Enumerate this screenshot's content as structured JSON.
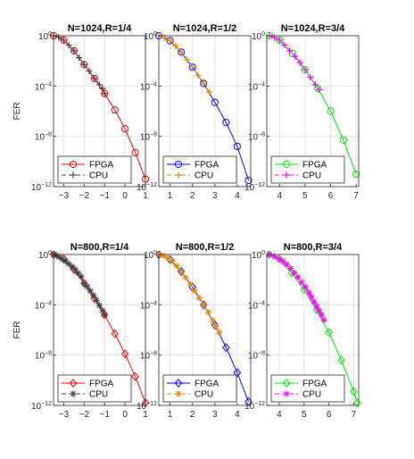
{
  "figure": {
    "ylabel": "FER"
  },
  "chart_data": [
    {
      "type": "line",
      "title": "N=1024,R=1/4",
      "xlim": [
        -3.5,
        1
      ],
      "xticks": [
        -3,
        -2,
        -1,
        0,
        1
      ],
      "ylim": [
        -12,
        0
      ],
      "yticks": [
        0,
        -4,
        -8,
        -12
      ],
      "yscale": "log",
      "grid": true,
      "legend": "bottom",
      "series": [
        {
          "name": "FPGA",
          "color": "#ff0000",
          "linestyle": "solid",
          "marker": "circle",
          "x": [
            -3.5,
            -3,
            -2.5,
            -2,
            -1.5,
            -1,
            -0.5,
            0,
            0.5,
            1
          ],
          "y": [
            0,
            -0.35,
            -1.2,
            -2.3,
            -3.4,
            -4.6,
            -5.9,
            -7.4,
            -9.3,
            -11.4
          ]
        },
        {
          "name": "CPU",
          "color": "#404040",
          "linestyle": "dashed",
          "marker": "plus",
          "x": [
            -3.5,
            -3.25,
            -3,
            -2.75,
            -2.5,
            -2.25,
            -2,
            -1.75,
            -1.5,
            -1.25,
            -1.1,
            -1
          ],
          "y": [
            0,
            -0.12,
            -0.35,
            -0.75,
            -1.2,
            -1.75,
            -2.3,
            -2.8,
            -3.4,
            -3.9,
            -4.2,
            -4.6
          ]
        }
      ]
    },
    {
      "type": "line",
      "title": "N=1024,R=1/2",
      "xlim": [
        0.5,
        4.6
      ],
      "xticks": [
        1,
        2,
        3,
        4
      ],
      "ylim": [
        -12,
        0
      ],
      "yticks": [
        0,
        -4,
        -8,
        -12
      ],
      "yscale": "log",
      "grid": true,
      "legend": "bottom",
      "series": [
        {
          "name": "FPGA",
          "color": "#0000ff",
          "linestyle": "solid",
          "marker": "circle",
          "x": [
            0.5,
            1,
            1.5,
            2,
            2.5,
            3,
            3.5,
            4,
            4.5
          ],
          "y": [
            0,
            -0.4,
            -1.3,
            -2.5,
            -3.8,
            -5.3,
            -6.9,
            -8.8,
            -11.5
          ]
        },
        {
          "name": "CPU",
          "color": "#e88a00",
          "linestyle": "dashed",
          "marker": "plus",
          "x": [
            0.5,
            0.75,
            1,
            1.25,
            1.5,
            1.75,
            2,
            2.25,
            2.5,
            2.75
          ],
          "y": [
            0,
            -0.15,
            -0.4,
            -0.8,
            -1.3,
            -1.9,
            -2.5,
            -3.15,
            -3.8,
            -4.5
          ]
        }
      ]
    },
    {
      "type": "line",
      "title": "N=1024,R=3/4",
      "xlim": [
        3.5,
        7.1
      ],
      "xticks": [
        4,
        5,
        6,
        7
      ],
      "ylim": [
        -12,
        0
      ],
      "yticks": [
        0,
        -4,
        -8,
        -12
      ],
      "yscale": "log",
      "grid": true,
      "legend": "bottom",
      "series": [
        {
          "name": "FPGA",
          "color": "#00ee00",
          "linestyle": "solid",
          "marker": "circle",
          "x": [
            3.6,
            4,
            4.5,
            5,
            5.5,
            6,
            6.5,
            7
          ],
          "y": [
            0,
            -0.35,
            -1.4,
            -2.7,
            -4.2,
            -6,
            -8.3,
            -11
          ]
        },
        {
          "name": "CPU",
          "color": "#ff00ff",
          "linestyle": "dashed",
          "marker": "plus",
          "x": [
            3.6,
            3.8,
            4,
            4.2,
            4.4,
            4.6,
            4.8,
            5,
            5.2,
            5.4,
            5.55
          ],
          "y": [
            0,
            -0.15,
            -0.35,
            -0.75,
            -1.2,
            -1.65,
            -2.15,
            -2.7,
            -3.3,
            -3.9,
            -4.3
          ]
        }
      ]
    },
    {
      "type": "line",
      "title": "N=800,R=1/4",
      "xlim": [
        -3.5,
        1
      ],
      "xticks": [
        -3,
        -2,
        -1,
        0,
        1
      ],
      "ylim": [
        -12,
        0
      ],
      "yticks": [
        0,
        -4,
        -8,
        -12
      ],
      "yscale": "log",
      "grid": true,
      "legend": "bottom",
      "series": [
        {
          "name": "FPGA",
          "color": "#ff0000",
          "linestyle": "solid",
          "marker": "diamond",
          "x": [
            -3.5,
            -3,
            -2.5,
            -2,
            -1.5,
            -1,
            -0.5,
            0,
            0.5,
            1
          ],
          "y": [
            0,
            -0.35,
            -1.2,
            -2.3,
            -3.5,
            -4.8,
            -6.3,
            -7.9,
            -9.7,
            -11.8
          ]
        },
        {
          "name": "CPU",
          "color": "#404040",
          "linestyle": "dashed",
          "marker": "asterisk",
          "x": [
            -3.5,
            -3.35,
            -3.2,
            -3.05,
            -2.9,
            -2.75,
            -2.6,
            -2.45,
            -2.3,
            -2.15,
            -2,
            -1.85,
            -1.7,
            -1.55,
            -1.4,
            -1.25,
            -1.1,
            -1
          ],
          "y": [
            0,
            -0.1,
            -0.22,
            -0.38,
            -0.55,
            -0.75,
            -0.97,
            -1.2,
            -1.48,
            -1.75,
            -2.3,
            -2.55,
            -2.9,
            -3.25,
            -3.65,
            -4.05,
            -4.45,
            -4.8
          ]
        }
      ]
    },
    {
      "type": "line",
      "title": "N=800,R=1/2",
      "xlim": [
        0.5,
        4.6
      ],
      "xticks": [
        1,
        2,
        3,
        4
      ],
      "ylim": [
        -12,
        0
      ],
      "yticks": [
        0,
        -4,
        -8,
        -12
      ],
      "yscale": "log",
      "grid": true,
      "legend": "bottom",
      "series": [
        {
          "name": "FPGA",
          "color": "#0000ff",
          "linestyle": "solid",
          "marker": "diamond",
          "x": [
            0.5,
            1,
            1.5,
            2,
            2.5,
            3,
            3.5,
            4,
            4.5
          ],
          "y": [
            0,
            -0.4,
            -1.35,
            -2.6,
            -4,
            -5.6,
            -7.4,
            -9.4,
            -11.7
          ]
        },
        {
          "name": "CPU",
          "color": "#e88a00",
          "linestyle": "dashed",
          "marker": "asterisk",
          "x": [
            0.5,
            0.7,
            0.9,
            1.1,
            1.3,
            1.5,
            1.7,
            1.9,
            2.1,
            2.3,
            2.5,
            2.7,
            2.9,
            3.05,
            3.2
          ],
          "y": [
            0,
            -0.1,
            -0.28,
            -0.55,
            -0.9,
            -1.35,
            -1.85,
            -2.35,
            -2.9,
            -3.45,
            -4,
            -4.6,
            -5.25,
            -5.75,
            -6.2
          ]
        }
      ]
    },
    {
      "type": "line",
      "title": "N=800,R=3/4",
      "xlim": [
        3.5,
        7.2
      ],
      "xticks": [
        4,
        5,
        6,
        7
      ],
      "ylim": [
        -12,
        0
      ],
      "yticks": [
        0,
        -4,
        -8,
        -12
      ],
      "yscale": "log",
      "grid": true,
      "legend": "bottom",
      "series": [
        {
          "name": "FPGA",
          "color": "#00ee00",
          "linestyle": "solid",
          "marker": "diamond",
          "x": [
            3.6,
            4,
            4.5,
            5,
            5.5,
            6,
            6.5,
            7,
            7.15
          ],
          "y": [
            0,
            -0.35,
            -1.45,
            -2.8,
            -4.4,
            -6.2,
            -8.4,
            -10.9,
            -11.8
          ]
        },
        {
          "name": "CPU",
          "color": "#ff00ff",
          "linestyle": "dashed",
          "marker": "asterisk",
          "x": [
            3.6,
            3.8,
            4,
            4.15,
            4.3,
            4.45,
            4.6,
            4.75,
            4.9,
            5.05,
            5.2,
            5.3,
            5.4,
            5.5,
            5.6,
            5.7,
            5.8
          ],
          "y": [
            0,
            -0.15,
            -0.35,
            -0.55,
            -0.8,
            -1.1,
            -1.45,
            -1.8,
            -2.2,
            -2.6,
            -3.05,
            -3.4,
            -3.75,
            -4.1,
            -4.45,
            -4.8,
            -5.2
          ]
        }
      ]
    }
  ]
}
